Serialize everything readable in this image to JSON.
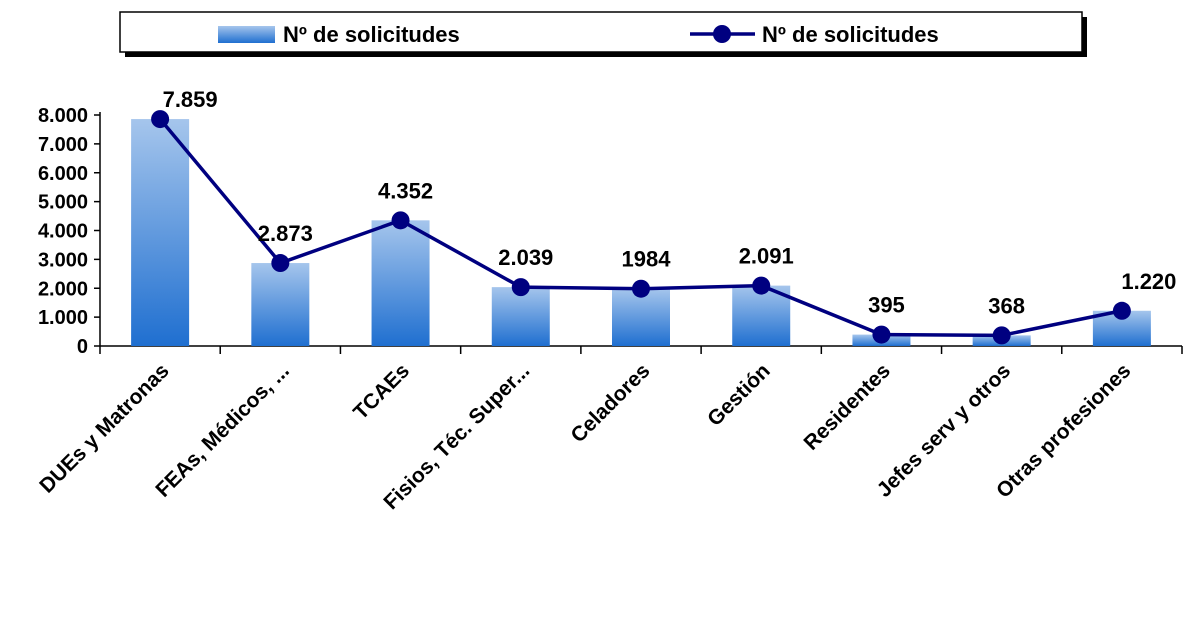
{
  "chart_data": {
    "type": "combo",
    "categories": [
      "DUEs y Matronas",
      "FEAs, Médicos, ...",
      "TCAEs",
      "Fisios, Téc. Super...",
      "Celadores",
      "Gestión",
      "Residentes",
      "Jefes serv y otros",
      "Otras profesiones"
    ],
    "series": [
      {
        "name": "Nº de solicitudes",
        "type": "bar",
        "color": "#1f6fd0",
        "values": [
          7859,
          2873,
          4352,
          2039,
          1984,
          2091,
          395,
          368,
          1220
        ]
      },
      {
        "name": "Nº de solicitudes",
        "type": "line",
        "color": "#000080",
        "values": [
          7859,
          2873,
          4352,
          2039,
          1984,
          2091,
          395,
          368,
          1220
        ],
        "value_labels": [
          "7.859",
          "2.873",
          "4.352",
          "2.039",
          "1984",
          "2.091",
          "395",
          "368",
          "1.220"
        ]
      }
    ],
    "ylim": [
      0,
      8000
    ],
    "yticks": [
      0,
      {
        "value": 1000,
        "label": "1.000"
      },
      {
        "value": 2000,
        "label": "2.000"
      },
      {
        "value": 3000,
        "label": "3.000"
      },
      {
        "value": 4000,
        "label": "4.000"
      },
      {
        "value": 5000,
        "label": "5.000"
      },
      {
        "value": 6000,
        "label": "6.000"
      },
      {
        "value": 7000,
        "label": "7.000"
      },
      {
        "value": 8000,
        "label": "8.000"
      }
    ],
    "legend": "top"
  }
}
